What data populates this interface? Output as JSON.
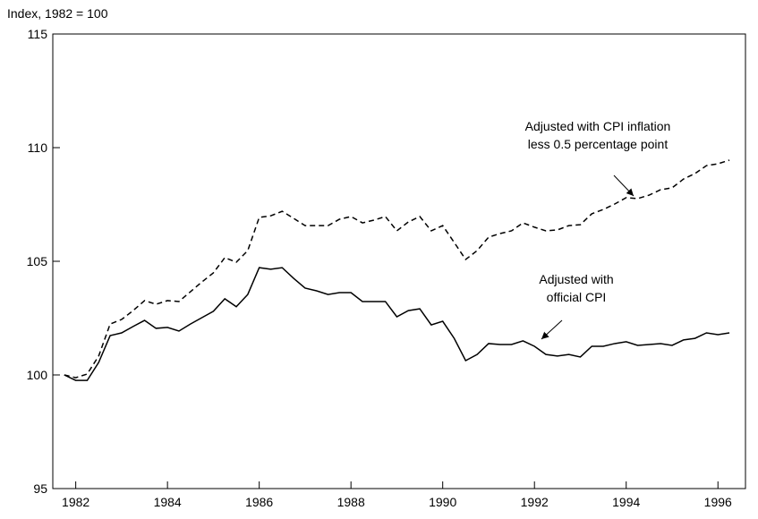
{
  "chart_data": {
    "type": "line",
    "y_label": "Index, 1982 = 100",
    "x": [
      1981.75,
      1982,
      1982.25,
      1982.5,
      1982.75,
      1983,
      1983.25,
      1983.5,
      1983.75,
      1984,
      1984.25,
      1984.5,
      1984.75,
      1985,
      1985.25,
      1985.5,
      1985.75,
      1986,
      1986.25,
      1986.5,
      1986.75,
      1987,
      1987.25,
      1987.5,
      1987.75,
      1988,
      1988.25,
      1988.5,
      1988.75,
      1989,
      1989.25,
      1989.5,
      1989.75,
      1990,
      1990.25,
      1990.5,
      1990.75,
      1991,
      1991.25,
      1991.5,
      1991.75,
      1992,
      1992.25,
      1992.5,
      1992.75,
      1993,
      1993.25,
      1993.5,
      1993.75,
      1994,
      1994.25,
      1994.5,
      1994.75,
      1995,
      1995.25,
      1995.5,
      1995.75,
      1996,
      1996.25
    ],
    "series": [
      {
        "name": "Adjusted with CPI inflation less 0.5 percentage point",
        "color": "#000000",
        "dash": true,
        "values": [
          100,
          99.88,
          100.04,
          100.83,
          102.24,
          102.44,
          102.83,
          103.27,
          103.11,
          103.27,
          103.23,
          103.66,
          104.09,
          104.49,
          105.16,
          104.96,
          105.47,
          106.93,
          107.0,
          107.2,
          106.89,
          106.57,
          106.57,
          106.57,
          106.85,
          106.97,
          106.69,
          106.81,
          106.97,
          106.34,
          106.73,
          106.97,
          106.34,
          106.57,
          105.83,
          105.08,
          105.47,
          106.06,
          106.22,
          106.34,
          106.69,
          106.5,
          106.34,
          106.38,
          106.57,
          106.61,
          107.09,
          107.28,
          107.52,
          107.8,
          107.76,
          107.91,
          108.15,
          108.23,
          108.62,
          108.86,
          109.21,
          109.29,
          109.45
        ]
      },
      {
        "name": "Adjusted with official CPI",
        "color": "#000000",
        "dash": false,
        "values": [
          100,
          99.76,
          99.76,
          100.55,
          101.73,
          101.85,
          102.13,
          102.4,
          102.05,
          102.09,
          101.93,
          102.24,
          102.52,
          102.8,
          103.35,
          103.0,
          103.54,
          104.72,
          104.65,
          104.72,
          104.25,
          103.82,
          103.7,
          103.54,
          103.62,
          103.62,
          103.23,
          103.23,
          103.23,
          102.56,
          102.83,
          102.91,
          102.2,
          102.36,
          101.61,
          100.63,
          100.9,
          101.38,
          101.34,
          101.34,
          101.5,
          101.26,
          100.9,
          100.83,
          100.9,
          100.79,
          101.26,
          101.26,
          101.38,
          101.46,
          101.3,
          101.34,
          101.38,
          101.3,
          101.54,
          101.61,
          101.85,
          101.77,
          101.85
        ]
      }
    ],
    "annotations": [
      {
        "lines": [
          "Adjusted with CPI inflation",
          "less 0.5 percentage point"
        ]
      },
      {
        "lines": [
          "Adjusted with",
          "official CPI"
        ]
      }
    ],
    "xlim": [
      1981.5,
      1996.6
    ],
    "xticks": [
      1982,
      1984,
      1986,
      1988,
      1990,
      1992,
      1994,
      1996
    ],
    "ylim": [
      95,
      115
    ],
    "yticks": [
      95,
      100,
      105,
      110,
      115
    ]
  }
}
